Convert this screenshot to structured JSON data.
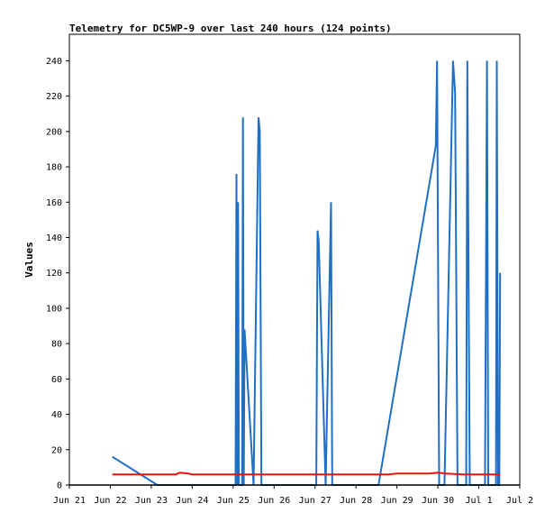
{
  "chart_data": {
    "type": "line",
    "title": "Telemetry for DC5WP-9 over last 240 hours (124 points)",
    "xlabel": "",
    "ylabel": "Values",
    "ylim": [
      0,
      255
    ],
    "xlim": [
      0,
      11
    ],
    "x_tick_labels": [
      "Jun 21",
      "Jun 22",
      "Jun 23",
      "Jun 24",
      "Jun 25",
      "Jun 26",
      "Jun 27",
      "Jun 28",
      "Jun 29",
      "Jun 30",
      "Jul 1",
      "Jul 2"
    ],
    "x_tick_values": [
      0,
      1,
      2,
      3,
      4,
      5,
      6,
      7,
      8,
      9,
      10,
      11
    ],
    "y_ticks": [
      0,
      20,
      40,
      60,
      80,
      100,
      120,
      140,
      160,
      180,
      200,
      220,
      240
    ],
    "grid": false,
    "legend": "none",
    "series": [
      {
        "color": "#1f6fc5",
        "x": [
          1.05,
          2.15,
          2.3,
          4.0,
          4.06,
          4.08,
          4.1,
          4.12,
          4.14,
          4.16,
          4.2,
          4.22,
          4.24,
          4.26,
          4.28,
          4.5,
          4.62,
          4.65,
          4.69,
          6.03,
          6.06,
          6.09,
          6.26,
          6.39,
          6.42,
          6.47,
          6.5,
          7.55,
          8.95,
          8.98,
          9.03,
          9.16,
          9.37,
          9.42,
          9.48,
          9.55,
          9.63,
          9.69,
          9.72,
          9.78,
          9.9,
          10.07,
          10.1,
          10.15,
          10.2,
          10.23,
          10.42,
          10.44,
          10.47,
          10.5,
          10.52
        ],
        "y": [
          16,
          0,
          0,
          0,
          0,
          176,
          0,
          160,
          0,
          0,
          0,
          0,
          208,
          0,
          88,
          0,
          208,
          200,
          0,
          0,
          144,
          138,
          0,
          160,
          0,
          0,
          0,
          0,
          192,
          240,
          0,
          0,
          240,
          222,
          0,
          0,
          0,
          0,
          240,
          0,
          0,
          0,
          0,
          0,
          240,
          0,
          0,
          240,
          0,
          0,
          120
        ]
      },
      {
        "color": "#e8160c",
        "x": [
          1.05,
          1.6,
          2.2,
          2.6,
          2.7,
          2.9,
          3.0,
          3.5,
          4.2,
          5.0,
          6.0,
          7.0,
          7.8,
          8.0,
          8.5,
          8.8,
          9.0,
          9.2,
          9.6,
          10.0,
          10.5,
          10.52
        ],
        "y": [
          6,
          6,
          6,
          6,
          7,
          6.5,
          6,
          6,
          6,
          6,
          6,
          6,
          6,
          6.5,
          6.5,
          6.5,
          7,
          6.5,
          6,
          6,
          6,
          6
        ]
      }
    ]
  }
}
